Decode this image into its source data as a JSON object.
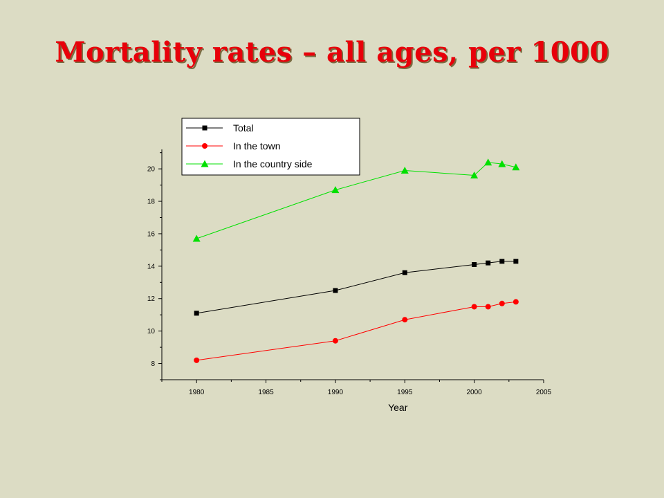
{
  "page": {
    "title": "Mortality rates – all ages, per 1000"
  },
  "chart_data": {
    "type": "line",
    "xlabel": "Year",
    "ylabel": "",
    "xlim": [
      1977.5,
      2005
    ],
    "ylim": [
      7,
      21.2
    ],
    "xticks": [
      1980,
      1985,
      1990,
      1995,
      2000,
      2005
    ],
    "yticks": [
      8,
      10,
      12,
      14,
      16,
      18,
      20
    ],
    "legend_position": "top-left",
    "series": [
      {
        "name": "Total",
        "color": "#000000",
        "marker": "square",
        "x": [
          1980,
          1990,
          1995,
          2000,
          2001,
          2002,
          2003
        ],
        "y": [
          11.1,
          12.5,
          13.6,
          14.1,
          14.2,
          14.3,
          14.3
        ]
      },
      {
        "name": "In the town",
        "color": "#ff0000",
        "marker": "circle",
        "x": [
          1980,
          1990,
          1995,
          2000,
          2001,
          2002,
          2003
        ],
        "y": [
          8.2,
          9.4,
          10.7,
          11.5,
          11.5,
          11.7,
          11.8
        ]
      },
      {
        "name": "In the country side",
        "color": "#00e000",
        "marker": "triangle",
        "x": [
          1980,
          1990,
          1995,
          2000,
          2001,
          2002,
          2003
        ],
        "y": [
          15.7,
          18.7,
          19.9,
          19.6,
          20.4,
          20.3,
          20.1
        ]
      }
    ]
  }
}
